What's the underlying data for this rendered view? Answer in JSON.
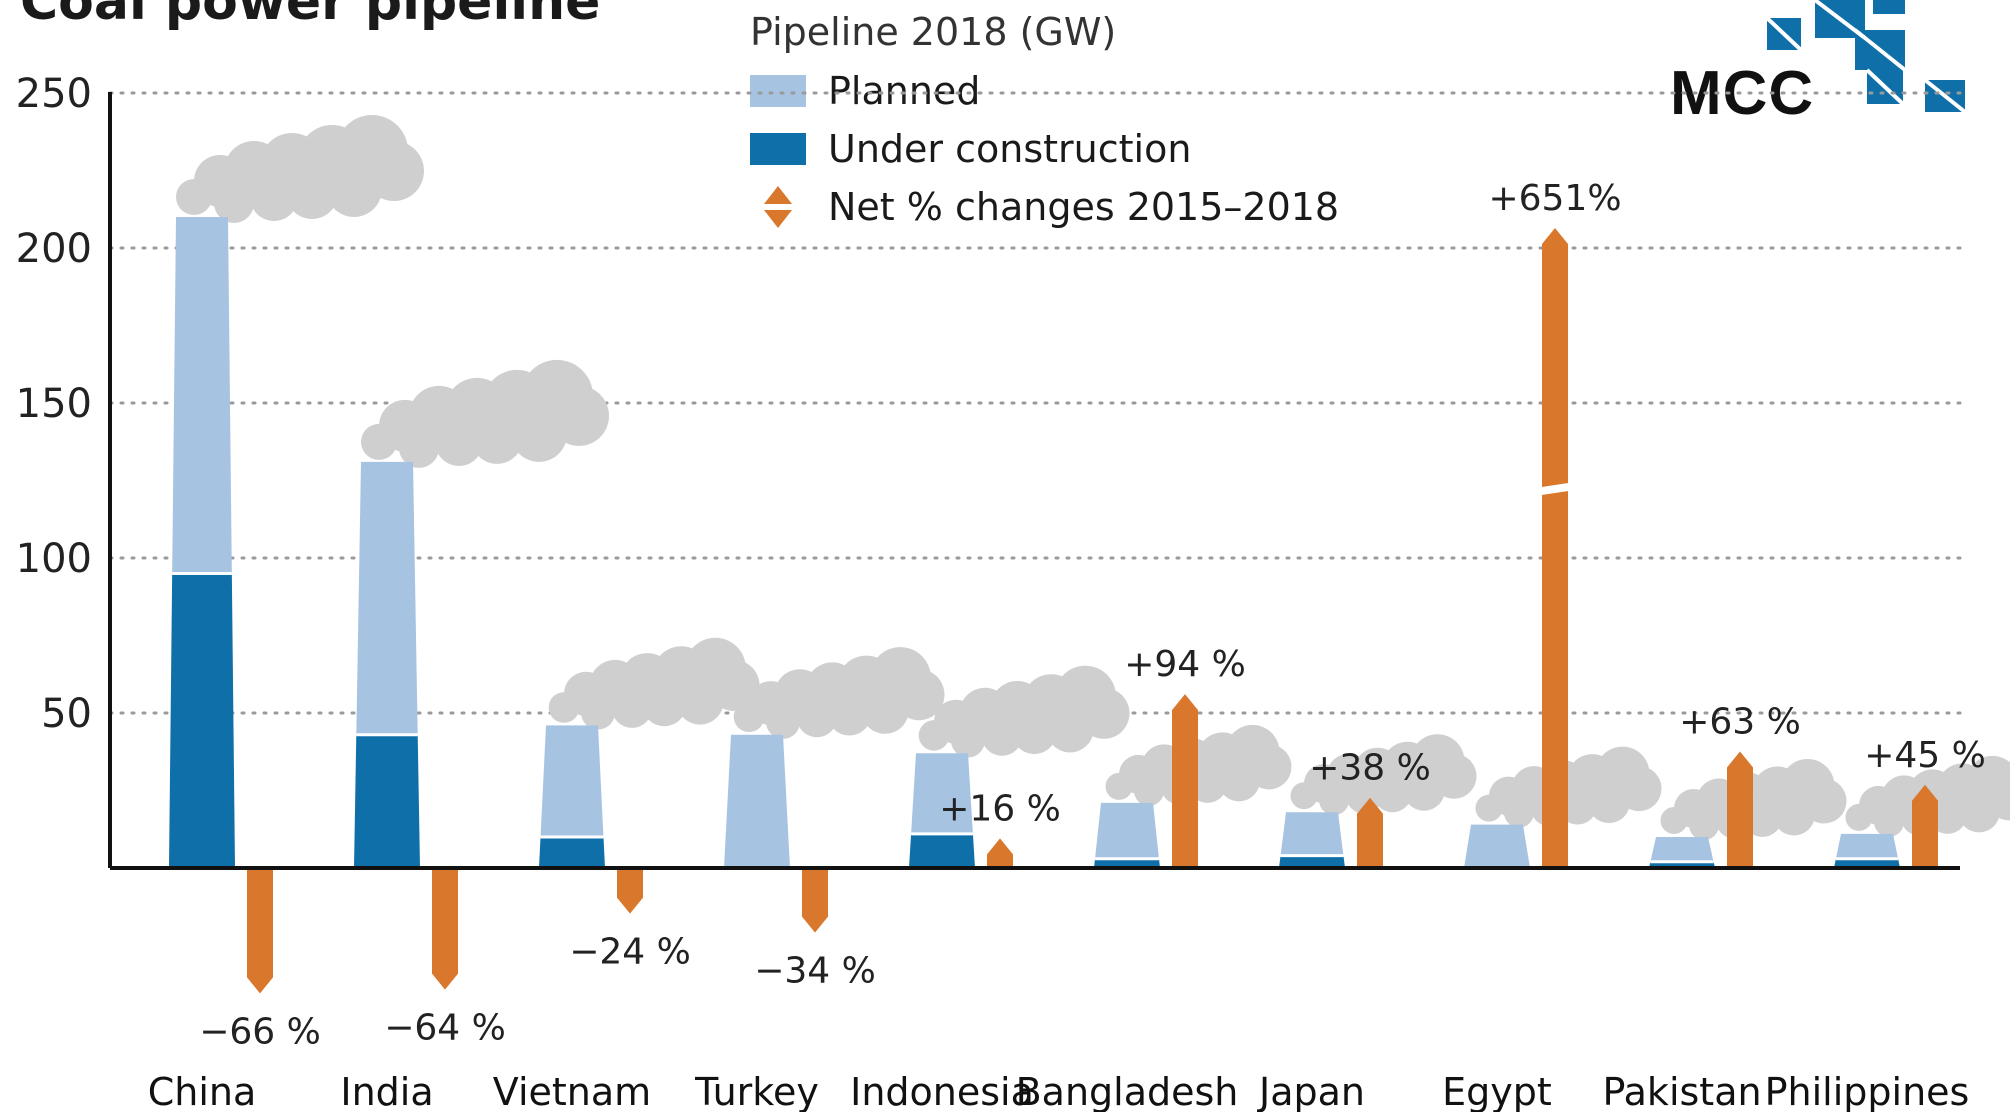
{
  "title": "Coal power pipeline",
  "logo": {
    "text": "MCC"
  },
  "legend": {
    "title": "Pipeline 2018 (GW)",
    "items": [
      {
        "label": "Planned",
        "color": "#a7c3e2"
      },
      {
        "label": "Under construction",
        "color": "#0f6fa8"
      },
      {
        "label": "Net % changes 2015–2018",
        "color": "#d9782d"
      }
    ]
  },
  "chart_data": {
    "type": "bar",
    "title": "Coal power pipeline",
    "ylim": [
      0,
      250
    ],
    "yticks": [
      50,
      100,
      150,
      200,
      250
    ],
    "grid": true,
    "legend_position": "top",
    "categories": [
      "China",
      "India",
      "Vietnam",
      "Turkey",
      "Indonesia",
      "Bangladesh",
      "Japan",
      "Egypt",
      "Pakistan",
      "Philippines"
    ],
    "series": [
      {
        "name": "Under construction",
        "values": [
          95,
          43,
          10,
          0,
          11,
          3,
          4,
          0,
          2,
          3
        ]
      },
      {
        "name": "Planned",
        "values": [
          115,
          88,
          36,
          43,
          26,
          18,
          14,
          14,
          8,
          8
        ]
      }
    ],
    "net_change": {
      "name": "Net % changes 2015–2018",
      "values": [
        -66,
        -64,
        -24,
        -34,
        16,
        94,
        38,
        651,
        63,
        45
      ],
      "labels": [
        "−66 %",
        "−64 %",
        "−24 %",
        "−34 %",
        "+16 %",
        "+94 %",
        "+38 %",
        "+651%",
        "+63 %",
        "+45 %"
      ]
    }
  }
}
